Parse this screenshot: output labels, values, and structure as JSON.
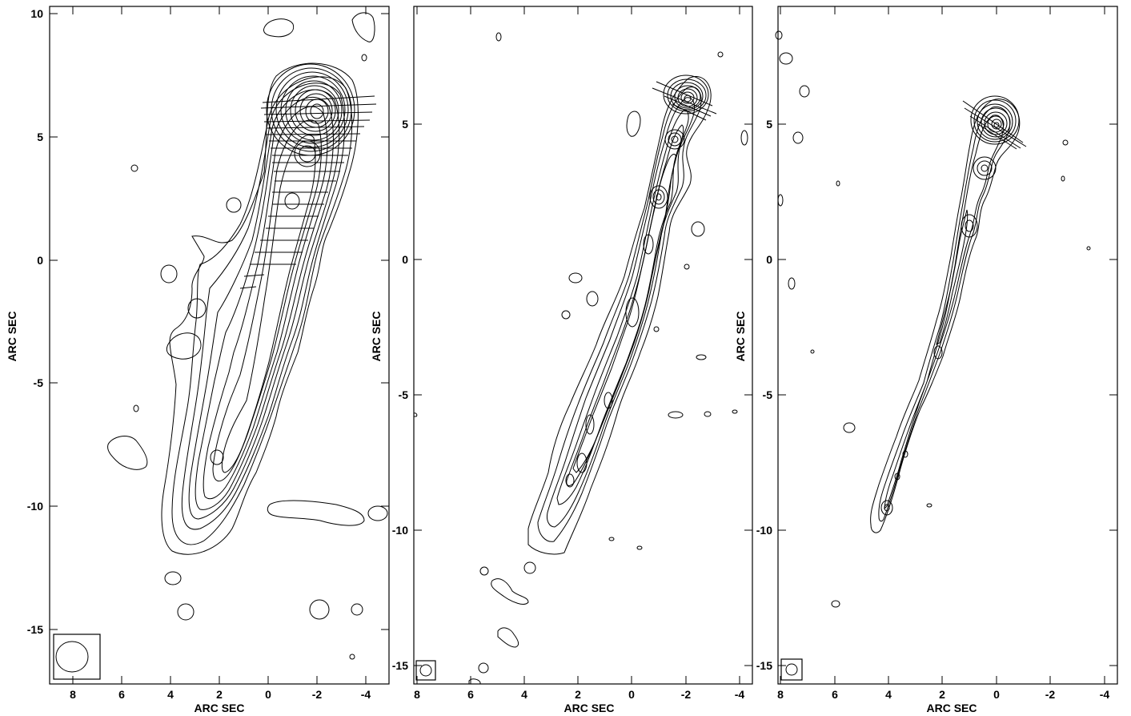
{
  "panels": [
    {
      "id": "left",
      "xlabel": "ARC SEC",
      "ylabel": "ARC SEC",
      "x_ticks": [
        "8",
        "6",
        "4",
        "2",
        "0",
        "-2",
        "-4"
      ],
      "y_ticks": [
        "10",
        "5",
        "0",
        "-5",
        "-10",
        "-15"
      ]
    },
    {
      "id": "middle",
      "xlabel": "ARC SEC",
      "ylabel": "ARC SEC",
      "x_ticks": [
        "8",
        "6",
        "4",
        "2",
        "0",
        "-2",
        "-4"
      ],
      "y_ticks": [
        "5",
        "0",
        "-5",
        "-10",
        "-15"
      ]
    },
    {
      "id": "right",
      "xlabel": "ARC SEC",
      "ylabel": "ARC SEC",
      "x_ticks": [
        "8",
        "6",
        "4",
        "2",
        "0",
        "-2",
        "-4"
      ],
      "y_ticks": [
        "5",
        "0",
        "-5",
        "-10",
        "-15"
      ]
    }
  ]
}
